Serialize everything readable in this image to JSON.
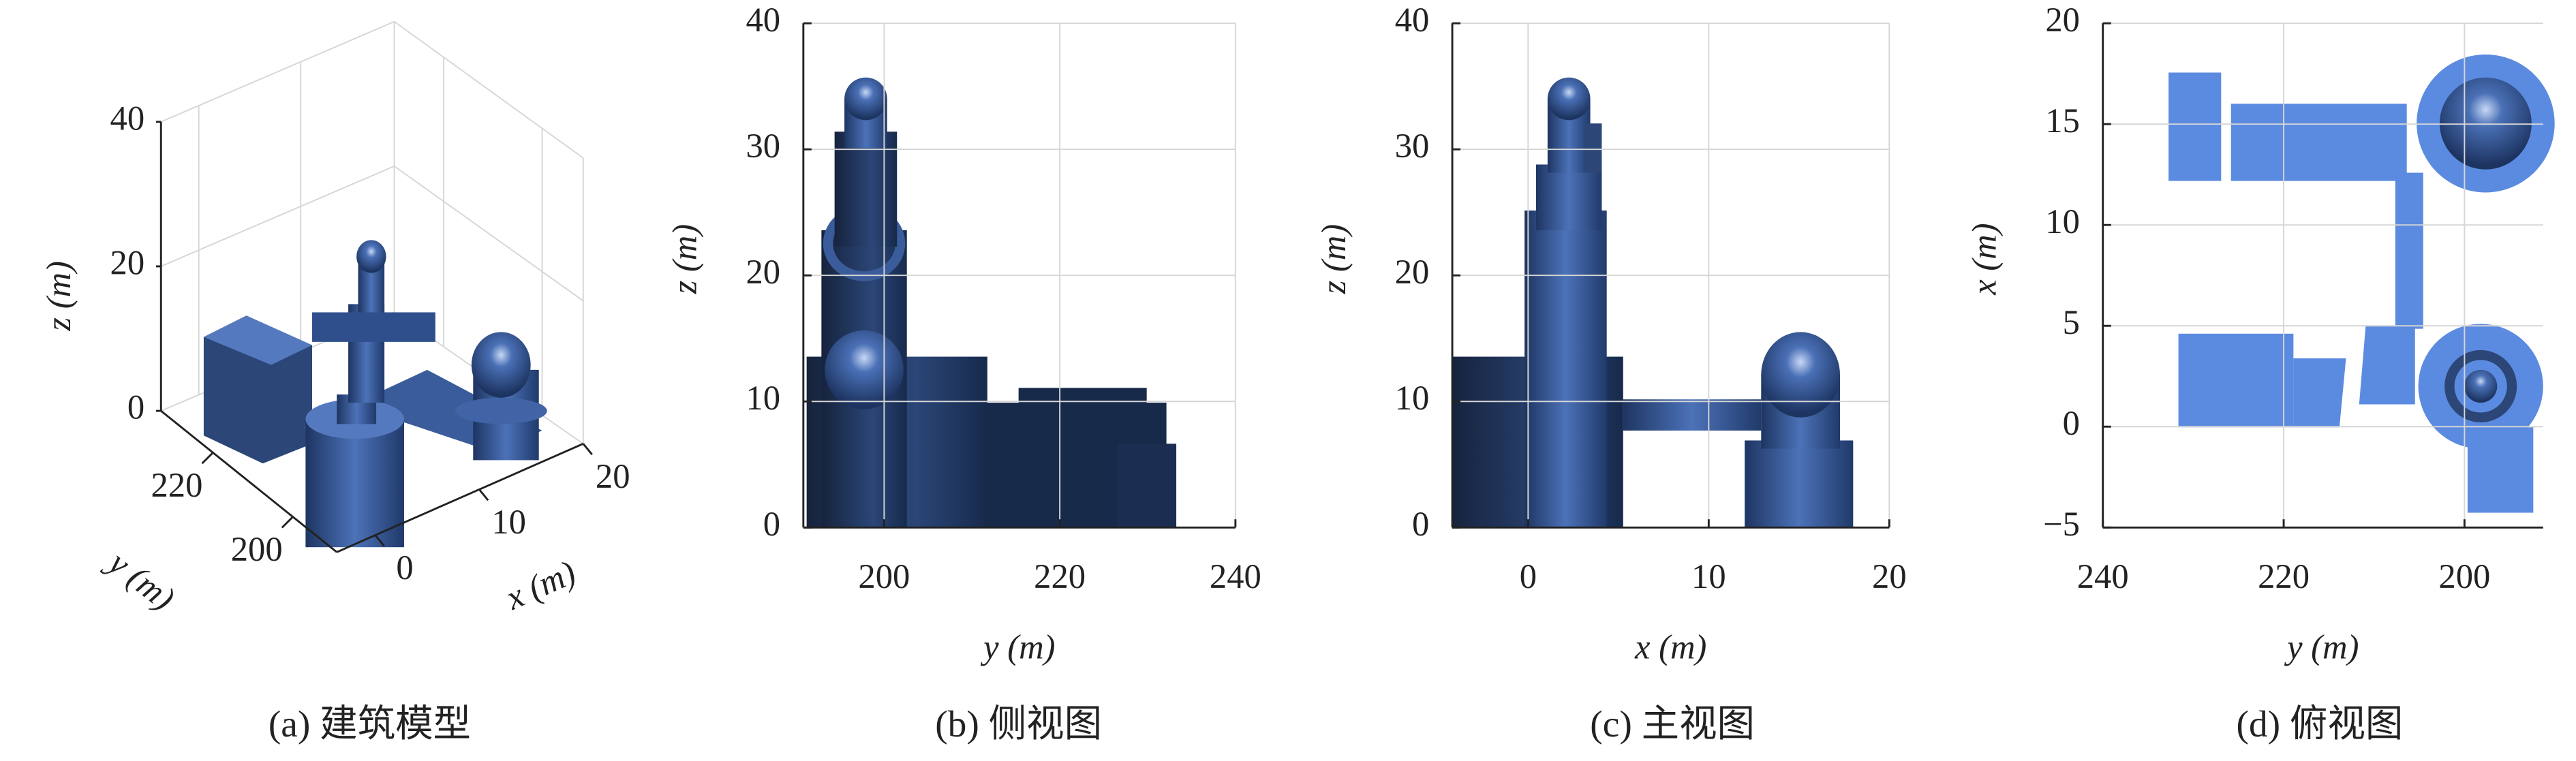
{
  "chart_data": [
    {
      "type": "model3d",
      "caption": "(a) 建筑模型",
      "zlabel": "z (m)",
      "ylabel": "y (m)",
      "xlabel": "x (m)",
      "zlim": [
        0,
        40
      ],
      "zticks": [
        0,
        20,
        40
      ],
      "ylim": [
        233,
        189
      ],
      "yticks": [
        200,
        220
      ],
      "xlim": [
        -3.7,
        20
      ],
      "xticks": [
        0,
        10,
        20
      ]
    },
    {
      "type": "view",
      "caption": "(b) 侧视图",
      "xlabel": "y (m)",
      "ylabel": "z (m)",
      "xlim": [
        190.8,
        240
      ],
      "xticks": [
        200,
        220,
        240
      ],
      "ylim": [
        0,
        40
      ],
      "yticks": [
        0,
        10,
        20,
        30,
        40
      ],
      "grid": true
    },
    {
      "type": "view",
      "caption": "(c) 主视图",
      "xlabel": "x (m)",
      "ylabel": "z (m)",
      "xlim": [
        -4.2,
        20
      ],
      "xticks": [
        0,
        10,
        20
      ],
      "ylim": [
        0,
        40
      ],
      "yticks": [
        0,
        10,
        20,
        30,
        40
      ],
      "grid": true
    },
    {
      "type": "view",
      "caption": "(d) 俯视图",
      "xlabel": "y (m)",
      "ylabel": "x (m)",
      "xlim": [
        240,
        191.3
      ],
      "xticks": [
        240,
        220,
        200
      ],
      "ylim": [
        -5,
        20
      ],
      "yticks": [
        {
          "value": -5,
          "label": "−5"
        },
        0,
        5,
        10,
        15,
        20
      ],
      "grid": true
    }
  ]
}
